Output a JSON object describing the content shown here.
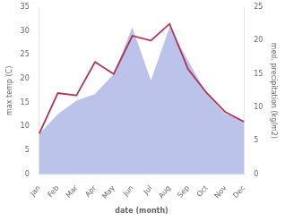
{
  "chart_data": {
    "type": "line",
    "categories": [
      "Jan",
      "Feb",
      "Mar",
      "Apr",
      "May",
      "Jun",
      "Jul",
      "Aug",
      "Sep",
      "Oct",
      "Nov",
      "Dec"
    ],
    "xlabel": "date (month)",
    "ylabel": "max temp (C)",
    "y2label": "med. precipitation (kg/m2)",
    "series": [
      {
        "type": "area",
        "axis": "y2",
        "color": "#b0b8e8",
        "values": [
          6.0,
          9.0,
          11.0,
          12.0,
          15.0,
          22.0,
          14.0,
          22.0,
          17.0,
          12.0,
          9.0,
          8.0
        ]
      },
      {
        "type": "line",
        "color": "#b03050",
        "values": [
          8.5,
          17.0,
          16.5,
          23.5,
          21.0,
          29.0,
          28.0,
          31.5,
          22.0,
          17.0,
          13.0,
          11.0
        ]
      }
    ],
    "ylim": [
      0,
      35
    ],
    "yticks": [
      0,
      5,
      10,
      15,
      20,
      25,
      30,
      35
    ],
    "y2lim": [
      0,
      25
    ],
    "y2ticks": [
      0,
      5,
      10,
      15,
      20,
      25
    ],
    "grid": false
  }
}
